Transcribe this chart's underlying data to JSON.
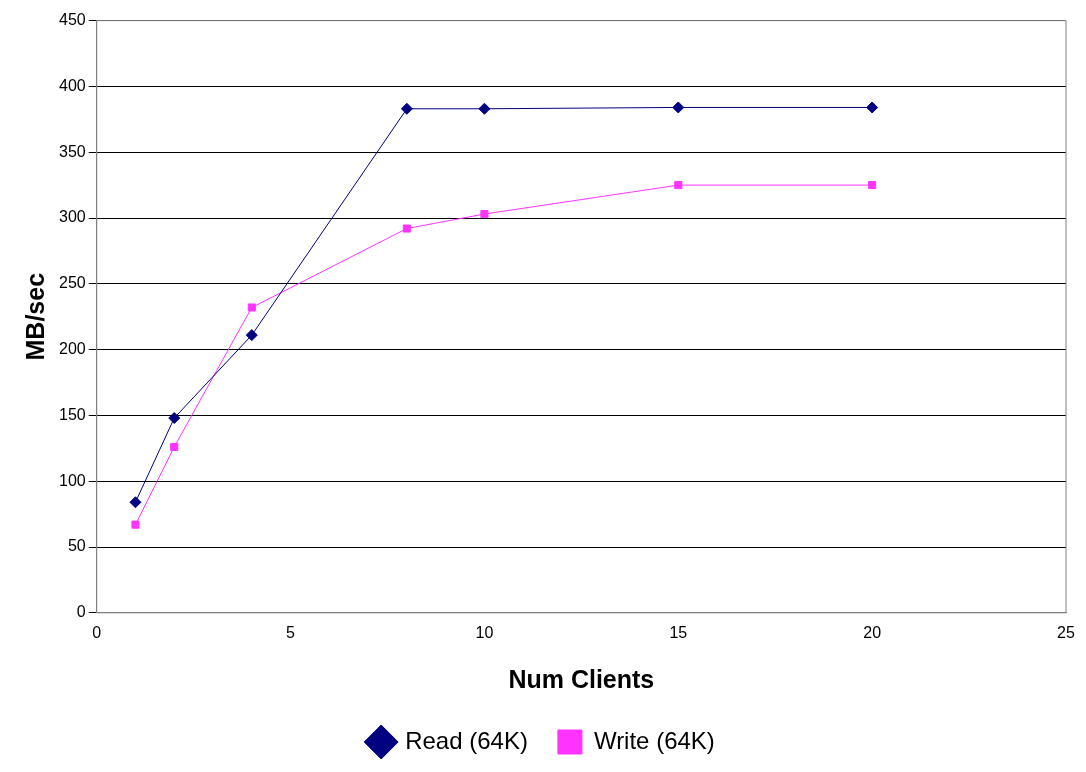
{
  "chart_data": {
    "type": "line",
    "xlabel": "Num Clients",
    "ylabel": "MB/sec",
    "x": [
      1,
      2,
      4,
      8,
      10,
      15,
      20
    ],
    "series": [
      {
        "name": "Read (64K)",
        "color": "#000080",
        "marker": "diamond",
        "values": [
          84,
          148,
          211,
          383,
          383,
          384,
          384
        ]
      },
      {
        "name": "Write (64K)",
        "color": "#ff33ff",
        "marker": "square",
        "values": [
          67,
          126,
          232,
          292,
          303,
          325,
          325
        ]
      }
    ],
    "xlim": [
      0,
      25
    ],
    "xticks": [
      0,
      5,
      10,
      15,
      20,
      25
    ],
    "ylim": [
      0,
      450
    ],
    "yticks": [
      0,
      50,
      100,
      150,
      200,
      250,
      300,
      350,
      400,
      450
    ],
    "grid": "y",
    "legend": "bottom"
  }
}
